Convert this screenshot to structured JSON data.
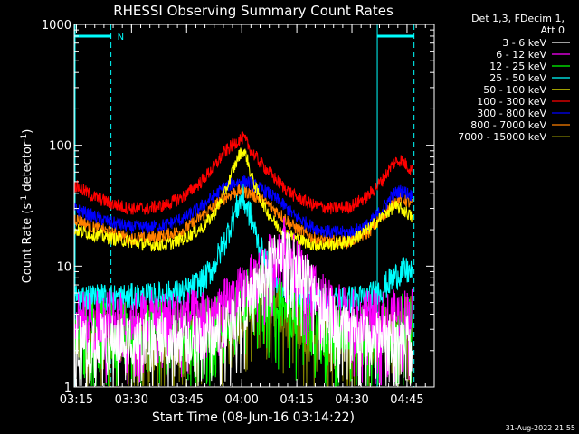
{
  "chart_data": {
    "type": "line",
    "title": "RHESSI Observing Summary Count Rates",
    "xlabel": "Start Time (08-Jun-16 03:14:22)",
    "ylabel_main": "Count Rate (s",
    "ylabel_sup1": "-1",
    "ylabel_mid": " detector",
    "ylabel_sup2": "-1",
    "ylabel_end": ")",
    "y_scale": "log",
    "ylim": [
      1,
      1000
    ],
    "xlim_minutes": [
      0,
      98
    ],
    "x_ticks": [
      {
        "t": 0.6,
        "label": "03:15"
      },
      {
        "t": 15.6,
        "label": "03:30"
      },
      {
        "t": 30.6,
        "label": "03:45"
      },
      {
        "t": 45.6,
        "label": "04:00"
      },
      {
        "t": 60.6,
        "label": "04:15"
      },
      {
        "t": 75.6,
        "label": "04:30"
      },
      {
        "t": 90.6,
        "label": "04:45"
      }
    ],
    "y_ticks": [
      {
        "v": 1,
        "label": "1"
      },
      {
        "v": 10,
        "label": "10"
      },
      {
        "v": 100,
        "label": "100"
      },
      {
        "v": 1000,
        "label": "1000"
      }
    ],
    "legend_header": [
      "Det 1,3, FDecim 1,",
      "Att 0"
    ],
    "legend_position": "right",
    "night_marker_label": "N",
    "night_intervals": [
      [
        0,
        10
      ],
      [
        82.5,
        92.5
      ]
    ],
    "series": [
      {
        "name": "3 - 6 keV",
        "color": "#ffffff",
        "x": [
          0,
          30,
          38,
          40,
          42,
          45,
          48,
          50,
          53,
          56,
          60,
          66,
          70,
          75,
          80,
          85,
          88,
          92
        ],
        "y": [
          2.5,
          2.5,
          2.8,
          3.2,
          3.6,
          4.2,
          5.5,
          7,
          10,
          14,
          11,
          6,
          4,
          3,
          2.6,
          2.5,
          2.6,
          2.8
        ]
      },
      {
        "name": "6 - 12 keV",
        "color": "#ff00ff",
        "x": [
          0,
          30,
          38,
          42,
          45,
          48,
          52,
          55,
          57,
          60,
          63,
          66,
          70,
          75,
          80,
          85,
          90,
          92
        ],
        "y": [
          3.8,
          3.8,
          4.2,
          5,
          6,
          7.5,
          10,
          14,
          16,
          12,
          8,
          6,
          4.5,
          4,
          3.8,
          3.8,
          4,
          4.2
        ]
      },
      {
        "name": "12 - 25 keV",
        "color": "#00ff00",
        "x": [
          0,
          30,
          38,
          42,
          45,
          48,
          50,
          53,
          56,
          60,
          65,
          70,
          75,
          80,
          85,
          88,
          90,
          92
        ],
        "y": [
          3.1,
          3.1,
          3.4,
          4,
          5,
          6,
          6.5,
          6,
          5,
          4,
          3.4,
          3.1,
          3.1,
          3.1,
          3.3,
          3.6,
          3.8,
          3.8
        ]
      },
      {
        "name": "25 - 50 keV",
        "color": "#00ffff",
        "x": [
          0,
          20,
          30,
          35,
          38,
          41,
          43,
          45,
          46,
          48,
          50,
          52,
          54,
          56,
          58,
          62,
          66,
          70,
          75,
          80,
          84,
          87,
          89,
          91,
          92
        ],
        "y": [
          5.5,
          5.5,
          6,
          7.5,
          10,
          16,
          24,
          34,
          36,
          26,
          16,
          11,
          8,
          6.5,
          6,
          5.5,
          5.3,
          5.3,
          5.3,
          5.5,
          6.5,
          8,
          9,
          9,
          8.5
        ]
      },
      {
        "name": "50 - 100 keV",
        "color": "#ffff00",
        "x": [
          0,
          10,
          20,
          25,
          30,
          35,
          38,
          41,
          43,
          45,
          46,
          47,
          48,
          50,
          52,
          55,
          60,
          65,
          70,
          75,
          80,
          84,
          87,
          89,
          91,
          92
        ],
        "y": [
          20,
          17,
          15,
          15,
          17,
          21,
          27,
          40,
          60,
          84,
          90,
          80,
          58,
          40,
          30,
          22,
          17,
          15,
          15,
          16,
          20,
          26,
          31,
          30,
          27,
          25
        ]
      },
      {
        "name": "100 - 300 keV",
        "color": "#ff0000",
        "x": [
          0,
          5,
          10,
          15,
          20,
          25,
          30,
          34,
          38,
          41,
          43,
          45,
          46,
          47,
          48,
          50,
          53,
          56,
          60,
          65,
          70,
          75,
          80,
          84,
          87,
          89,
          91,
          92
        ],
        "y": [
          47,
          38,
          33,
          30,
          30,
          32,
          38,
          48,
          66,
          88,
          100,
          112,
          115,
          105,
          92,
          76,
          60,
          48,
          38,
          32,
          30,
          31,
          38,
          52,
          72,
          76,
          66,
          62
        ]
      },
      {
        "name": "300 - 800 keV",
        "color": "#0000ff",
        "x": [
          0,
          5,
          10,
          15,
          20,
          25,
          30,
          34,
          38,
          41,
          43,
          45,
          46,
          47,
          48,
          50,
          53,
          56,
          60,
          65,
          70,
          75,
          80,
          84,
          87,
          89,
          91,
          92
        ],
        "y": [
          30,
          26,
          23,
          21,
          21,
          22,
          25,
          30,
          38,
          45,
          48,
          50,
          50,
          50,
          48,
          45,
          40,
          34,
          26,
          21,
          19,
          19,
          22,
          30,
          40,
          42,
          40,
          38
        ]
      },
      {
        "name": "800 - 7000 keV",
        "color": "#ff8000",
        "x": [
          0,
          5,
          10,
          15,
          20,
          25,
          30,
          34,
          38,
          41,
          43,
          45,
          46,
          47,
          48,
          50,
          53,
          56,
          60,
          65,
          70,
          75,
          80,
          84,
          87,
          89,
          91,
          92
        ],
        "y": [
          25,
          21,
          19,
          17,
          17,
          18,
          20,
          25,
          31,
          37,
          40,
          42,
          42,
          41,
          40,
          37,
          32,
          27,
          21,
          17,
          16,
          16,
          19,
          26,
          34,
          37,
          34,
          32
        ]
      },
      {
        "name": "7000 - 15000 keV",
        "color": "#808000",
        "x": [
          0,
          30,
          38,
          42,
          45,
          48,
          50,
          53,
          56,
          60,
          65,
          70,
          75,
          80,
          85,
          88,
          90,
          92
        ],
        "y": [
          2.6,
          2.6,
          2.9,
          3.4,
          4.2,
          5.5,
          6.5,
          6,
          4.5,
          3.5,
          2.9,
          2.6,
          2.6,
          2.6,
          2.8,
          3.2,
          3.5,
          3.5
        ]
      }
    ],
    "grid": false
  },
  "timestamp": "31-Aug-2022 21:55",
  "colors": {
    "background": "#000000",
    "foreground": "#ffffff",
    "night_marker": "#00ffff"
  }
}
